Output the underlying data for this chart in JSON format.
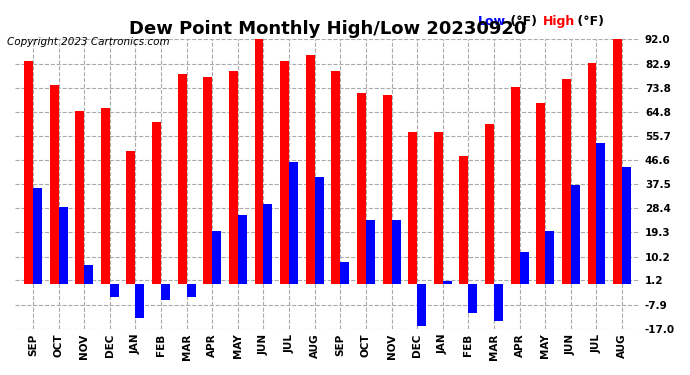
{
  "title": "Dew Point Monthly High/Low 20230920",
  "copyright": "Copyright 2023 Cartronics.com",
  "months": [
    "SEP",
    "OCT",
    "NOV",
    "DEC",
    "JAN",
    "FEB",
    "MAR",
    "APR",
    "MAY",
    "JUN",
    "JUL",
    "AUG",
    "SEP",
    "OCT",
    "NOV",
    "DEC",
    "JAN",
    "FEB",
    "MAR",
    "APR",
    "MAY",
    "JUN",
    "JUL",
    "AUG"
  ],
  "high_values": [
    84,
    75,
    65,
    66,
    50,
    61,
    79,
    78,
    80,
    92,
    84,
    86,
    80,
    72,
    71,
    57,
    57,
    48,
    60,
    74,
    68,
    77,
    83,
    92
  ],
  "low_values": [
    36,
    29,
    7,
    -5,
    -13,
    -6,
    -5,
    20,
    26,
    30,
    46,
    40,
    8,
    24,
    24,
    -16,
    1,
    -11,
    -14,
    12,
    20,
    37,
    53,
    44
  ],
  "ylim": [
    -17,
    92
  ],
  "yticks": [
    -17.0,
    -7.9,
    1.2,
    10.2,
    19.3,
    28.4,
    37.5,
    46.6,
    55.7,
    64.8,
    73.8,
    82.9,
    92.0
  ],
  "high_color": "#ff0000",
  "low_color": "#0000ff",
  "grid_color": "#aaaaaa",
  "background_color": "#ffffff",
  "bar_width": 0.35,
  "title_fontsize": 13,
  "label_fontsize": 7.5,
  "legend_fontsize": 9,
  "copyright_fontsize": 7.5
}
